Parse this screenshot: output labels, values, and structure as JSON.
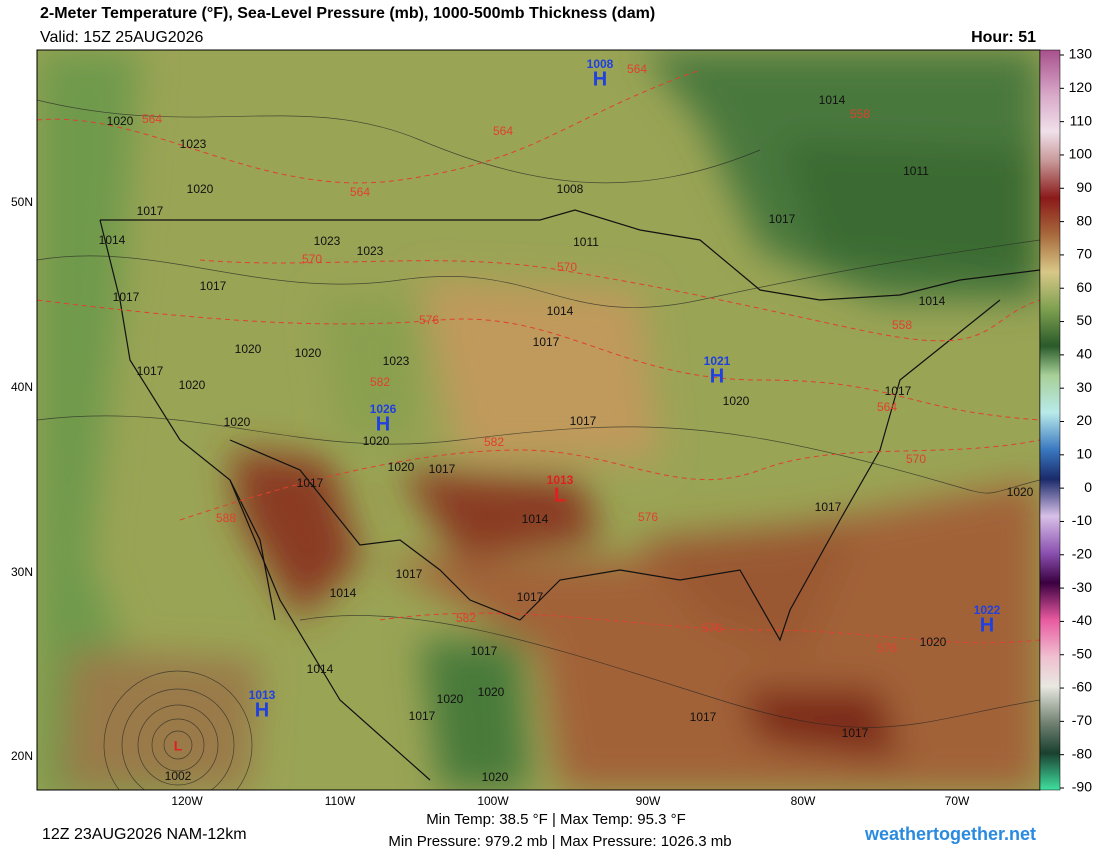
{
  "header": {
    "title": "2-Meter Temperature (°F), Sea-Level Pressure (mb), 1000-500mb Thickness (dam)",
    "valid": "Valid: 15Z 25AUG2026",
    "hour": "Hour: 51"
  },
  "colorbar": {
    "ticks": [
      130,
      120,
      110,
      100,
      90,
      80,
      70,
      60,
      50,
      40,
      30,
      20,
      10,
      0,
      -10,
      -20,
      -30,
      -40,
      -50,
      -60,
      -70,
      -80,
      -90
    ]
  },
  "latitude_labels": [
    "50N",
    "40N",
    "30N",
    "20N"
  ],
  "longitude_labels": [
    "120W",
    "110W",
    "100W",
    "90W",
    "80W",
    "70W"
  ],
  "pressure_centers": [
    {
      "symbol": "H",
      "value": "1008"
    },
    {
      "symbol": "H",
      "value": "1021"
    },
    {
      "symbol": "H",
      "value": "1026"
    },
    {
      "symbol": "L",
      "value": "1013"
    },
    {
      "symbol": "H",
      "value": "1013"
    },
    {
      "symbol": "H",
      "value": "1022"
    },
    {
      "symbol": "L"
    }
  ],
  "isobar_labels": [
    "1020",
    "1023",
    "1020",
    "1017",
    "1014",
    "1023",
    "1023",
    "1017",
    "1017",
    "1020",
    "1020",
    "1023",
    "1017",
    "1020",
    "1020",
    "1020",
    "1020",
    "1017",
    "1017",
    "1008",
    "1011",
    "1014",
    "1017",
    "1017",
    "1020",
    "1017",
    "1014",
    "1011",
    "1017",
    "1014",
    "1017",
    "1014",
    "1017",
    "1017",
    "1020",
    "1020",
    "1017",
    "1020",
    "1014",
    "1017",
    "1017",
    "1020",
    "1020",
    "1017",
    "1014",
    "1002"
  ],
  "thickness_labels": [
    "564",
    "564",
    "564",
    "564",
    "558",
    "570",
    "570",
    "576",
    "558",
    "582",
    "564",
    "582",
    "570",
    "576",
    "588",
    "582",
    "576",
    "576"
  ],
  "footer": {
    "stats_temp": "Min Temp:  38.5 °F | Max Temp:  95.3 °F",
    "stats_pressure": "Min Pressure: 979.2 mb | Max Pressure: 1026.3 mb",
    "run": "12Z 23AUG2026 NAM-12km",
    "site": "weathertogether.net"
  }
}
